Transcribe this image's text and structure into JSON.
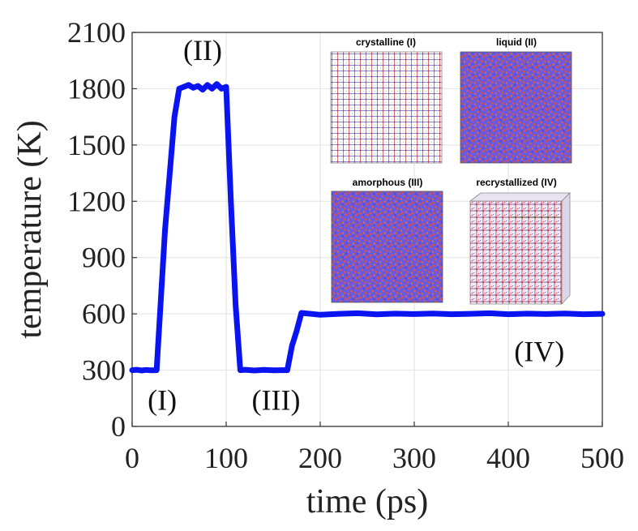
{
  "chart_data": {
    "type": "line",
    "title": "",
    "xlabel": "time (ps)",
    "ylabel": "temperature (K)",
    "xlim": [
      0,
      500
    ],
    "ylim": [
      0,
      2100
    ],
    "xticks": [
      0,
      100,
      200,
      300,
      400,
      500
    ],
    "yticks": [
      0,
      300,
      600,
      900,
      1200,
      1500,
      1800,
      2100
    ],
    "grid": true,
    "series": [
      {
        "name": "temperature",
        "color": "#0a14f0",
        "x": [
          0,
          5,
          10,
          15,
          20,
          26,
          35,
          45,
          50,
          55,
          60,
          65,
          70,
          75,
          80,
          85,
          90,
          95,
          100,
          105,
          110,
          115,
          120,
          130,
          140,
          150,
          160,
          165,
          170,
          175,
          180,
          200,
          220,
          240,
          260,
          280,
          300,
          320,
          340,
          360,
          380,
          400,
          420,
          440,
          460,
          480,
          500
        ],
        "y": [
          300,
          302,
          298,
          301,
          299,
          300,
          1050,
          1650,
          1800,
          1810,
          1820,
          1805,
          1815,
          1795,
          1820,
          1800,
          1825,
          1800,
          1810,
          1200,
          650,
          300,
          302,
          298,
          301,
          299,
          300,
          300,
          430,
          510,
          605,
          595,
          600,
          603,
          597,
          601,
          599,
          602,
          598,
          600,
          603,
          598,
          601,
          599,
          602,
          598,
          600
        ]
      }
    ],
    "annotations": [
      {
        "text": "(I)",
        "x": 32,
        "y": 140
      },
      {
        "text": "(II)",
        "x": 75,
        "y": 2005
      },
      {
        "text": "(III)",
        "x": 153,
        "y": 140
      },
      {
        "text": "(IV)",
        "x": 433,
        "y": 400
      }
    ],
    "insets": [
      {
        "label": "crystalline (I)",
        "pattern": "lattice"
      },
      {
        "label": "liquid (II)",
        "pattern": "disordered"
      },
      {
        "label": "amorphous (III)",
        "pattern": "disordered"
      },
      {
        "label": "recrystallized (IV)",
        "pattern": "mixed"
      }
    ],
    "inset_colors": [
      "#e0503a",
      "#5a60e0"
    ]
  }
}
